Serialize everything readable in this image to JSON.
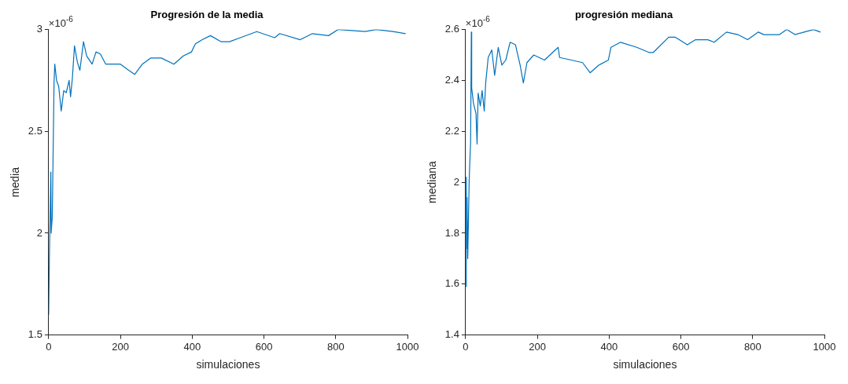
{
  "chart_data": [
    {
      "type": "line",
      "title": "Progresión de la media",
      "xlabel": "simulaciones",
      "ylabel": "media",
      "annotations": [
        "×10$^{-6}$"
      ],
      "xlim": [
        0,
        1000
      ],
      "xticks": [
        0,
        200,
        400,
        600,
        800,
        1000
      ],
      "ylim": [
        1.5,
        3
      ],
      "yticks": [
        1.5,
        2,
        2.5,
        3
      ],
      "grid": false,
      "legend": false,
      "x": [
        0,
        2,
        6,
        7,
        10,
        12,
        15,
        17,
        22,
        28,
        35,
        42,
        49,
        57,
        61,
        66,
        72,
        80,
        87,
        97,
        106,
        121,
        132,
        144,
        159,
        178,
        200,
        223,
        240,
        261,
        284,
        314,
        349,
        375,
        398,
        409,
        428,
        451,
        481,
        504,
        534,
        580,
        630,
        644,
        701,
        735,
        780,
        807,
        882,
        913,
        959,
        995
      ],
      "series": [
        {
          "color": "#0072bd",
          "values": [
            1.6,
            1.88,
            2.3,
            2.0,
            2.08,
            2.34,
            2.74,
            2.83,
            2.75,
            2.72,
            2.6,
            2.7,
            2.69,
            2.75,
            2.67,
            2.76,
            2.92,
            2.84,
            2.8,
            2.94,
            2.87,
            2.83,
            2.89,
            2.88,
            2.83,
            2.83,
            2.83,
            2.8,
            2.78,
            2.83,
            2.86,
            2.86,
            2.83,
            2.87,
            2.89,
            2.93,
            2.95,
            2.97,
            2.94,
            2.94,
            2.96,
            2.99,
            2.96,
            2.98,
            2.95,
            2.98,
            2.97,
            3.0,
            2.99,
            3.0,
            2.99,
            2.98
          ]
        }
      ]
    },
    {
      "type": "line",
      "title": "progresión mediana",
      "xlabel": "simulaciones",
      "ylabel": "mediana",
      "annotations": [
        "×10$^{-6}$"
      ],
      "xlim": [
        0,
        1000
      ],
      "xticks": [
        0,
        200,
        400,
        600,
        800,
        1000
      ],
      "ylim": [
        1.4,
        2.6
      ],
      "yticks": [
        1.4,
        1.6,
        1.8,
        2,
        2.2,
        2.4,
        2.6
      ],
      "grid": false,
      "legend": false,
      "x": [
        1,
        2,
        3,
        4,
        6,
        10,
        14,
        16,
        17,
        22,
        29,
        32,
        35,
        41,
        46,
        52,
        56,
        63,
        73,
        81,
        91,
        101,
        112,
        124,
        139,
        152,
        161,
        171,
        190,
        220,
        258,
        262,
        295,
        326,
        347,
        371,
        398,
        405,
        432,
        477,
        511,
        523,
        566,
        584,
        618,
        641,
        675,
        693,
        727,
        759,
        786,
        816,
        831,
        875,
        895,
        918,
        943,
        970,
        989
      ],
      "series": [
        {
          "color": "#0072bd",
          "values": [
            1.59,
            2.02,
            1.74,
            1.94,
            1.7,
            2.01,
            2.16,
            2.59,
            2.37,
            2.31,
            2.27,
            2.15,
            2.35,
            2.3,
            2.36,
            2.28,
            2.39,
            2.49,
            2.52,
            2.42,
            2.53,
            2.46,
            2.48,
            2.55,
            2.54,
            2.46,
            2.39,
            2.47,
            2.5,
            2.48,
            2.53,
            2.49,
            2.48,
            2.47,
            2.43,
            2.46,
            2.48,
            2.53,
            2.55,
            2.53,
            2.51,
            2.51,
            2.57,
            2.57,
            2.54,
            2.56,
            2.56,
            2.55,
            2.59,
            2.58,
            2.56,
            2.59,
            2.58,
            2.58,
            2.6,
            2.58,
            2.59,
            2.6,
            2.59
          ]
        }
      ]
    }
  ]
}
